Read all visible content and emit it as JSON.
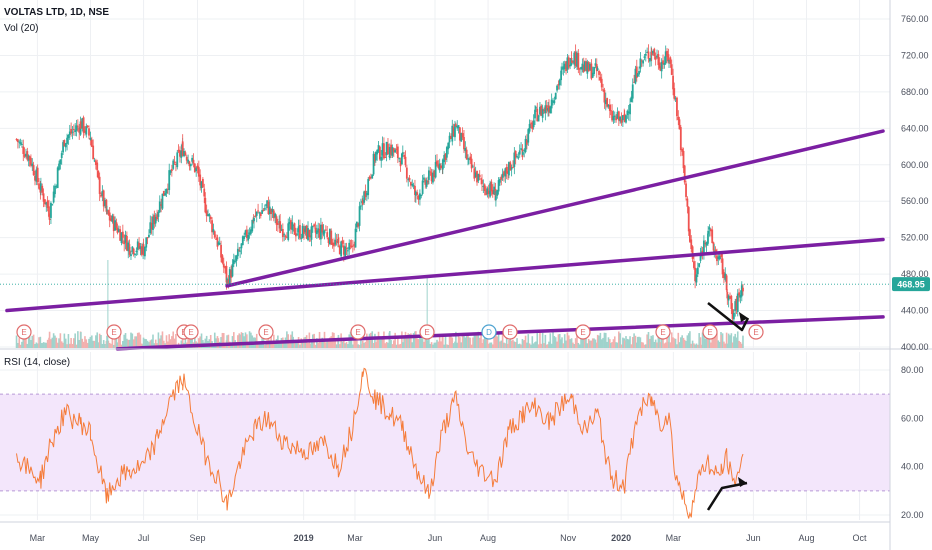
{
  "header": {
    "symbol": "VOLTAS LTD, 1D, NSE",
    "volume_label": "Vol (20)",
    "rsi_label": "RSI (14, close)"
  },
  "colors": {
    "up": "#26a69a",
    "down": "#ef5350",
    "trendline": "#7b1fa2",
    "rsi_line": "#f57c3a",
    "rsi_band": "#f3e6fb",
    "price_tag": "#26a69a",
    "event_badge": "#e06c6c",
    "dividend_badge": "#4fa3d1"
  },
  "chart_data": [
    {
      "type": "candlestick",
      "title": "VOLTAS LTD, 1D, NSE",
      "y_ticks": [
        "400.00",
        "440.00",
        "480.00",
        "520.00",
        "560.00",
        "600.00",
        "640.00",
        "680.00",
        "720.00",
        "760.00"
      ],
      "ylim": [
        400,
        770
      ],
      "x_ticks": [
        "Mar",
        "May",
        "Jul",
        "Sep",
        "2019",
        "Mar",
        "Jun",
        "Aug",
        "Nov",
        "2020",
        "Mar",
        "Jun",
        "Aug",
        "Oct"
      ],
      "last_price": "468.95",
      "grid": true,
      "series_close": [
        {
          "date": "2018-02-05",
          "close": 628
        },
        {
          "date": "2018-02-20",
          "close": 608
        },
        {
          "date": "2018-03-05",
          "close": 572
        },
        {
          "date": "2018-03-15",
          "close": 548
        },
        {
          "date": "2018-04-01",
          "close": 628
        },
        {
          "date": "2018-04-20",
          "close": 645
        },
        {
          "date": "2018-05-01",
          "close": 630
        },
        {
          "date": "2018-05-10",
          "close": 580
        },
        {
          "date": "2018-05-20",
          "close": 545
        },
        {
          "date": "2018-06-01",
          "close": 530
        },
        {
          "date": "2018-06-15",
          "close": 510
        },
        {
          "date": "2018-07-01",
          "close": 508
        },
        {
          "date": "2018-07-15",
          "close": 545
        },
        {
          "date": "2018-08-01",
          "close": 590
        },
        {
          "date": "2018-08-15",
          "close": 618
        },
        {
          "date": "2018-09-01",
          "close": 592
        },
        {
          "date": "2018-09-10",
          "close": 555
        },
        {
          "date": "2018-09-25",
          "close": 512
        },
        {
          "date": "2018-10-05",
          "close": 472
        },
        {
          "date": "2018-10-20",
          "close": 506
        },
        {
          "date": "2018-11-05",
          "close": 542
        },
        {
          "date": "2018-11-20",
          "close": 555
        },
        {
          "date": "2018-12-05",
          "close": 530
        },
        {
          "date": "2018-12-20",
          "close": 528
        },
        {
          "date": "2019-01-10",
          "close": 524
        },
        {
          "date": "2019-01-25",
          "close": 528
        },
        {
          "date": "2019-02-10",
          "close": 510
        },
        {
          "date": "2019-02-25",
          "close": 505
        },
        {
          "date": "2019-03-10",
          "close": 562
        },
        {
          "date": "2019-03-25",
          "close": 612
        },
        {
          "date": "2019-04-10",
          "close": 618
        },
        {
          "date": "2019-04-25",
          "close": 605
        },
        {
          "date": "2019-05-10",
          "close": 565
        },
        {
          "date": "2019-05-25",
          "close": 585
        },
        {
          "date": "2019-06-10",
          "close": 605
        },
        {
          "date": "2019-06-25",
          "close": 645
        },
        {
          "date": "2019-07-10",
          "close": 600
        },
        {
          "date": "2019-07-25",
          "close": 578
        },
        {
          "date": "2019-08-10",
          "close": 568
        },
        {
          "date": "2019-08-25",
          "close": 598
        },
        {
          "date": "2019-09-10",
          "close": 618
        },
        {
          "date": "2019-09-25",
          "close": 655
        },
        {
          "date": "2019-10-10",
          "close": 665
        },
        {
          "date": "2019-10-25",
          "close": 700
        },
        {
          "date": "2019-11-05",
          "close": 722
        },
        {
          "date": "2019-11-20",
          "close": 705
        },
        {
          "date": "2019-12-05",
          "close": 702
        },
        {
          "date": "2019-12-20",
          "close": 652
        },
        {
          "date": "2020-01-05",
          "close": 648
        },
        {
          "date": "2020-01-20",
          "close": 708
        },
        {
          "date": "2020-02-05",
          "close": 725
        },
        {
          "date": "2020-02-15",
          "close": 712
        },
        {
          "date": "2020-02-25",
          "close": 718
        },
        {
          "date": "2020-03-02",
          "close": 680
        },
        {
          "date": "2020-03-08",
          "close": 638
        },
        {
          "date": "2020-03-14",
          "close": 580
        },
        {
          "date": "2020-03-20",
          "close": 520
        },
        {
          "date": "2020-03-26",
          "close": 472
        },
        {
          "date": "2020-04-02",
          "close": 502
        },
        {
          "date": "2020-04-10",
          "close": 530
        },
        {
          "date": "2020-04-17",
          "close": 505
        },
        {
          "date": "2020-04-25",
          "close": 492
        },
        {
          "date": "2020-05-02",
          "close": 462
        },
        {
          "date": "2020-05-08",
          "close": 432
        },
        {
          "date": "2020-05-14",
          "close": 452
        },
        {
          "date": "2020-05-20",
          "close": 469
        }
      ],
      "trendlines": [
        {
          "from": {
            "date": "2018-01-25",
            "price": 440
          },
          "to": {
            "date": "2020-10-28",
            "price": 518
          }
        },
        {
          "from": {
            "date": "2018-10-05",
            "price": 467
          },
          "to": {
            "date": "2020-10-28",
            "price": 637
          }
        },
        {
          "from": {
            "date": "2018-06-01",
            "price": 398
          },
          "to": {
            "date": "2020-10-28",
            "price": 433
          }
        }
      ],
      "event_badges": [
        "E",
        "E",
        "E",
        "E",
        "E",
        "E",
        "E",
        "D",
        "E",
        "E",
        "E",
        "E",
        "E"
      ]
    },
    {
      "type": "line",
      "title": "RSI (14, close)",
      "y_ticks": [
        "20.00",
        "40.00",
        "60.00",
        "80.00"
      ],
      "ylim": [
        16,
        84
      ],
      "band": [
        30,
        70
      ],
      "series": [
        {
          "values": [
            {
              "date": "2018-02-05",
              "rsi": 45
            },
            {
              "date": "2018-02-20",
              "rsi": 38
            },
            {
              "date": "2018-03-05",
              "rsi": 35
            },
            {
              "date": "2018-03-15",
              "rsi": 48
            },
            {
              "date": "2018-04-01",
              "rsi": 62
            },
            {
              "date": "2018-04-20",
              "rsi": 58
            },
            {
              "date": "2018-05-01",
              "rsi": 54
            },
            {
              "date": "2018-05-10",
              "rsi": 40
            },
            {
              "date": "2018-05-20",
              "rsi": 27
            },
            {
              "date": "2018-06-01",
              "rsi": 35
            },
            {
              "date": "2018-06-15",
              "rsi": 38
            },
            {
              "date": "2018-07-01",
              "rsi": 40
            },
            {
              "date": "2018-07-15",
              "rsi": 50
            },
            {
              "date": "2018-08-01",
              "rsi": 68
            },
            {
              "date": "2018-08-15",
              "rsi": 76
            },
            {
              "date": "2018-09-01",
              "rsi": 55
            },
            {
              "date": "2018-09-10",
              "rsi": 45
            },
            {
              "date": "2018-09-25",
              "rsi": 35
            },
            {
              "date": "2018-10-05",
              "rsi": 24
            },
            {
              "date": "2018-10-20",
              "rsi": 42
            },
            {
              "date": "2018-11-05",
              "rsi": 55
            },
            {
              "date": "2018-11-20",
              "rsi": 60
            },
            {
              "date": "2018-12-05",
              "rsi": 52
            },
            {
              "date": "2018-12-20",
              "rsi": 48
            },
            {
              "date": "2019-01-10",
              "rsi": 46
            },
            {
              "date": "2019-01-25",
              "rsi": 50
            },
            {
              "date": "2019-02-10",
              "rsi": 40
            },
            {
              "date": "2019-02-25",
              "rsi": 55
            },
            {
              "date": "2019-03-10",
              "rsi": 80
            },
            {
              "date": "2019-03-25",
              "rsi": 68
            },
            {
              "date": "2019-04-10",
              "rsi": 62
            },
            {
              "date": "2019-04-25",
              "rsi": 56
            },
            {
              "date": "2019-05-10",
              "rsi": 40
            },
            {
              "date": "2019-05-25",
              "rsi": 28
            },
            {
              "date": "2019-06-10",
              "rsi": 55
            },
            {
              "date": "2019-06-25",
              "rsi": 68
            },
            {
              "date": "2019-07-10",
              "rsi": 45
            },
            {
              "date": "2019-07-25",
              "rsi": 38
            },
            {
              "date": "2019-08-10",
              "rsi": 35
            },
            {
              "date": "2019-08-25",
              "rsi": 55
            },
            {
              "date": "2019-09-10",
              "rsi": 62
            },
            {
              "date": "2019-09-25",
              "rsi": 65
            },
            {
              "date": "2019-10-10",
              "rsi": 58
            },
            {
              "date": "2019-10-25",
              "rsi": 66
            },
            {
              "date": "2019-11-05",
              "rsi": 68
            },
            {
              "date": "2019-11-20",
              "rsi": 55
            },
            {
              "date": "2019-12-05",
              "rsi": 62
            },
            {
              "date": "2019-12-20",
              "rsi": 35
            },
            {
              "date": "2020-01-05",
              "rsi": 33
            },
            {
              "date": "2020-01-20",
              "rsi": 62
            },
            {
              "date": "2020-02-05",
              "rsi": 68
            },
            {
              "date": "2020-02-15",
              "rsi": 58
            },
            {
              "date": "2020-02-25",
              "rsi": 62
            },
            {
              "date": "2020-03-02",
              "rsi": 40
            },
            {
              "date": "2020-03-08",
              "rsi": 32
            },
            {
              "date": "2020-03-14",
              "rsi": 25
            },
            {
              "date": "2020-03-20",
              "rsi": 22
            },
            {
              "date": "2020-03-26",
              "rsi": 28
            },
            {
              "date": "2020-04-02",
              "rsi": 40
            },
            {
              "date": "2020-04-10",
              "rsi": 42
            },
            {
              "date": "2020-04-17",
              "rsi": 36
            },
            {
              "date": "2020-04-25",
              "rsi": 38
            },
            {
              "date": "2020-05-02",
              "rsi": 44
            },
            {
              "date": "2020-05-08",
              "rsi": 32
            },
            {
              "date": "2020-05-14",
              "rsi": 38
            },
            {
              "date": "2020-05-20",
              "rsi": 42
            }
          ]
        }
      ]
    }
  ]
}
